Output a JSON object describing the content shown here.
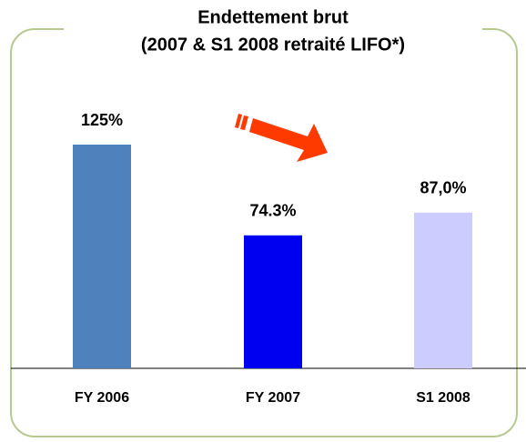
{
  "chart_data": {
    "type": "bar",
    "title": [
      "Endettement brut",
      "(2007 & S1 2008  retraité LIFO*)"
    ],
    "categories": [
      "FY 2006",
      "FY 2007",
      "S1 2008"
    ],
    "values": [
      125,
      74.3,
      87.0
    ],
    "value_labels": [
      "125%",
      "74.3%",
      "87,0%"
    ],
    "colors": [
      "#4f81bd",
      "#0000f0",
      "#ccccff"
    ],
    "ylim": [
      0,
      125
    ]
  }
}
